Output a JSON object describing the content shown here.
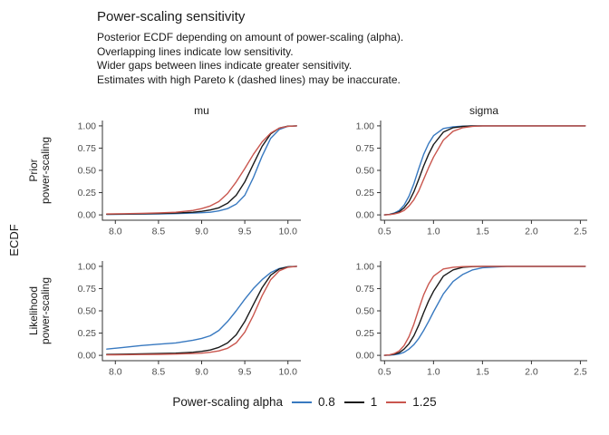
{
  "title": "Power-scaling sensitivity",
  "subtitle": "Posterior ECDF depending on amount of power-scaling (alpha).\nOverlapping lines indicate low sensitivity.\nWider gaps between lines indicate greater sensitivity.\nEstimates with high Pareto k (dashed lines) may be inaccurate.",
  "ylab": "ECDF",
  "facets": {
    "cols": [
      "mu",
      "sigma"
    ],
    "rows": [
      "Prior\npower-scaling",
      "Likelihood\npower-scaling"
    ]
  },
  "legend": {
    "title": "Power-scaling alpha",
    "items": [
      {
        "label": "0.8",
        "color": "#3879C0"
      },
      {
        "label": "1",
        "color": "#1A1A1A"
      },
      {
        "label": "1.25",
        "color": "#C9564E"
      }
    ]
  },
  "chart_data": {
    "type": "line",
    "description": "Posterior ECDF curves of parameters mu and sigma under prior and likelihood power-scaling with alpha = 0.8, 1, 1.25",
    "ylabel": "ECDF",
    "legend_position": "bottom",
    "grid": false,
    "panels": [
      {
        "id": "prior-mu",
        "row": "Prior power-scaling",
        "col": "mu",
        "xlim": [
          7.85,
          10.15
        ],
        "ylim": [
          -0.06,
          1.06
        ],
        "xtick_values": [
          8.0,
          8.5,
          9.0,
          9.5,
          10.0
        ],
        "xtick_labels": [
          "8.0",
          "8.5",
          "9.0",
          "9.5",
          "10.0"
        ],
        "ytick_values": [
          0,
          0.25,
          0.5,
          0.75,
          1.0
        ],
        "ytick_labels": [
          "0.00",
          "0.25",
          "0.50",
          "0.75",
          "1.00"
        ],
        "series": [
          {
            "name": "0.8",
            "color": "#3879C0",
            "x": [
              7.9,
              8.1,
              8.3,
              8.5,
              8.7,
              8.9,
              9.0,
              9.1,
              9.2,
              9.3,
              9.4,
              9.5,
              9.6,
              9.7,
              9.8,
              9.9,
              10.0,
              10.1
            ],
            "y": [
              0.005,
              0.007,
              0.009,
              0.011,
              0.014,
              0.02,
              0.025,
              0.03,
              0.045,
              0.07,
              0.12,
              0.22,
              0.42,
              0.66,
              0.86,
              0.96,
              0.995,
              1.0
            ]
          },
          {
            "name": "1",
            "color": "#1A1A1A",
            "x": [
              7.9,
              8.1,
              8.3,
              8.5,
              8.7,
              8.9,
              9.0,
              9.1,
              9.2,
              9.3,
              9.4,
              9.5,
              9.6,
              9.7,
              9.8,
              9.9,
              10.0,
              10.1
            ],
            "y": [
              0.007,
              0.009,
              0.012,
              0.015,
              0.02,
              0.03,
              0.04,
              0.055,
              0.08,
              0.13,
              0.22,
              0.37,
              0.57,
              0.77,
              0.91,
              0.975,
              0.997,
              1.0
            ]
          },
          {
            "name": "1.25",
            "color": "#C9564E",
            "x": [
              7.9,
              8.1,
              8.3,
              8.5,
              8.7,
              8.9,
              9.0,
              9.1,
              9.2,
              9.3,
              9.4,
              9.5,
              9.6,
              9.7,
              9.8,
              9.9,
              10.0,
              10.1
            ],
            "y": [
              0.01,
              0.013,
              0.017,
              0.022,
              0.03,
              0.05,
              0.07,
              0.1,
              0.15,
              0.24,
              0.37,
              0.52,
              0.68,
              0.82,
              0.92,
              0.975,
              0.995,
              1.0
            ]
          }
        ]
      },
      {
        "id": "prior-sigma",
        "row": "Prior power-scaling",
        "col": "sigma",
        "xlim": [
          0.46,
          2.57
        ],
        "ylim": [
          -0.06,
          1.06
        ],
        "xtick_values": [
          0.5,
          1.0,
          1.5,
          2.0,
          2.5
        ],
        "xtick_labels": [
          "0.5",
          "1.0",
          "1.5",
          "2.0",
          "2.5"
        ],
        "ytick_values": [
          0,
          0.25,
          0.5,
          0.75,
          1.0
        ],
        "ytick_labels": [
          "0.00",
          "0.25",
          "0.50",
          "0.75",
          "1.00"
        ],
        "series": [
          {
            "name": "0.8",
            "color": "#3879C0",
            "x": [
              0.5,
              0.55,
              0.6,
              0.65,
              0.7,
              0.75,
              0.8,
              0.85,
              0.9,
              0.95,
              1.0,
              1.1,
              1.2,
              1.3,
              1.4,
              1.5,
              1.75,
              2.55
            ],
            "y": [
              0.0,
              0.005,
              0.02,
              0.05,
              0.11,
              0.21,
              0.35,
              0.52,
              0.68,
              0.8,
              0.89,
              0.97,
              0.99,
              0.997,
              1.0,
              1.0,
              1.0,
              1.0
            ]
          },
          {
            "name": "1",
            "color": "#1A1A1A",
            "x": [
              0.5,
              0.55,
              0.6,
              0.65,
              0.7,
              0.75,
              0.8,
              0.85,
              0.9,
              0.95,
              1.0,
              1.1,
              1.2,
              1.3,
              1.4,
              1.5,
              1.75,
              2.55
            ],
            "y": [
              0.0,
              0.004,
              0.015,
              0.035,
              0.08,
              0.15,
              0.26,
              0.4,
              0.55,
              0.68,
              0.79,
              0.93,
              0.98,
              0.994,
              0.999,
              1.0,
              1.0,
              1.0
            ]
          },
          {
            "name": "1.25",
            "color": "#C9564E",
            "x": [
              0.5,
              0.55,
              0.6,
              0.65,
              0.7,
              0.75,
              0.8,
              0.85,
              0.9,
              0.95,
              1.0,
              1.1,
              1.2,
              1.3,
              1.4,
              1.5,
              1.75,
              2.55
            ],
            "y": [
              0.0,
              0.003,
              0.01,
              0.025,
              0.05,
              0.1,
              0.17,
              0.27,
              0.4,
              0.53,
              0.65,
              0.84,
              0.94,
              0.98,
              0.995,
              1.0,
              1.0,
              1.0
            ]
          }
        ]
      },
      {
        "id": "likelihood-mu",
        "row": "Likelihood power-scaling",
        "col": "mu",
        "xlim": [
          7.85,
          10.15
        ],
        "ylim": [
          -0.06,
          1.06
        ],
        "xtick_values": [
          8.0,
          8.5,
          9.0,
          9.5,
          10.0
        ],
        "xtick_labels": [
          "8.0",
          "8.5",
          "9.0",
          "9.5",
          "10.0"
        ],
        "ytick_values": [
          0,
          0.25,
          0.5,
          0.75,
          1.0
        ],
        "ytick_labels": [
          "0.00",
          "0.25",
          "0.50",
          "0.75",
          "1.00"
        ],
        "series": [
          {
            "name": "0.8",
            "color": "#3879C0",
            "x": [
              7.9,
              8.1,
              8.3,
              8.5,
              8.7,
              8.9,
              9.0,
              9.1,
              9.2,
              9.3,
              9.4,
              9.5,
              9.6,
              9.7,
              9.8,
              9.9,
              10.0,
              10.1
            ],
            "y": [
              0.07,
              0.09,
              0.11,
              0.125,
              0.14,
              0.17,
              0.19,
              0.22,
              0.28,
              0.38,
              0.5,
              0.63,
              0.75,
              0.85,
              0.93,
              0.975,
              0.995,
              1.0
            ]
          },
          {
            "name": "1",
            "color": "#1A1A1A",
            "x": [
              7.9,
              8.1,
              8.3,
              8.5,
              8.7,
              8.9,
              9.0,
              9.1,
              9.2,
              9.3,
              9.4,
              9.5,
              9.6,
              9.7,
              9.8,
              9.9,
              10.0,
              10.1
            ],
            "y": [
              0.01,
              0.013,
              0.016,
              0.02,
              0.025,
              0.035,
              0.045,
              0.06,
              0.09,
              0.14,
              0.23,
              0.38,
              0.57,
              0.76,
              0.9,
              0.97,
              0.995,
              1.0
            ]
          },
          {
            "name": "1.25",
            "color": "#C9564E",
            "x": [
              7.9,
              8.1,
              8.3,
              8.5,
              8.7,
              8.9,
              9.0,
              9.1,
              9.2,
              9.3,
              9.4,
              9.5,
              9.6,
              9.7,
              9.8,
              9.9,
              10.0,
              10.1
            ],
            "y": [
              0.005,
              0.007,
              0.009,
              0.011,
              0.014,
              0.02,
              0.025,
              0.035,
              0.05,
              0.08,
              0.14,
              0.26,
              0.45,
              0.67,
              0.85,
              0.95,
              0.99,
              1.0
            ]
          }
        ]
      },
      {
        "id": "likelihood-sigma",
        "row": "Likelihood power-scaling",
        "col": "sigma",
        "xlim": [
          0.46,
          2.57
        ],
        "ylim": [
          -0.06,
          1.06
        ],
        "xtick_values": [
          0.5,
          1.0,
          1.5,
          2.0,
          2.5
        ],
        "xtick_labels": [
          "0.5",
          "1.0",
          "1.5",
          "2.0",
          "2.5"
        ],
        "ytick_values": [
          0,
          0.25,
          0.5,
          0.75,
          1.0
        ],
        "ytick_labels": [
          "0.00",
          "0.25",
          "0.50",
          "0.75",
          "1.00"
        ],
        "series": [
          {
            "name": "0.8",
            "color": "#3879C0",
            "x": [
              0.5,
              0.55,
              0.6,
              0.65,
              0.7,
              0.75,
              0.8,
              0.85,
              0.9,
              0.95,
              1.0,
              1.1,
              1.2,
              1.3,
              1.4,
              1.5,
              1.75,
              2.55
            ],
            "y": [
              0.0,
              0.002,
              0.007,
              0.015,
              0.035,
              0.07,
              0.12,
              0.19,
              0.28,
              0.38,
              0.49,
              0.69,
              0.83,
              0.91,
              0.96,
              0.985,
              1.0,
              1.0
            ]
          },
          {
            "name": "1",
            "color": "#1A1A1A",
            "x": [
              0.5,
              0.55,
              0.6,
              0.65,
              0.7,
              0.75,
              0.8,
              0.85,
              0.9,
              0.95,
              1.0,
              1.1,
              1.2,
              1.3,
              1.4,
              1.5,
              1.75,
              2.55
            ],
            "y": [
              0.0,
              0.004,
              0.013,
              0.03,
              0.07,
              0.13,
              0.22,
              0.34,
              0.48,
              0.61,
              0.72,
              0.89,
              0.96,
              0.99,
              0.997,
              1.0,
              1.0,
              1.0
            ]
          },
          {
            "name": "1.25",
            "color": "#C9564E",
            "x": [
              0.5,
              0.55,
              0.6,
              0.65,
              0.7,
              0.75,
              0.8,
              0.85,
              0.9,
              0.95,
              1.0,
              1.1,
              1.2,
              1.3,
              1.4,
              1.5,
              1.75,
              2.55
            ],
            "y": [
              0.0,
              0.005,
              0.02,
              0.05,
              0.11,
              0.21,
              0.35,
              0.52,
              0.68,
              0.8,
              0.89,
              0.97,
              0.99,
              0.997,
              1.0,
              1.0,
              1.0,
              1.0
            ]
          }
        ]
      }
    ]
  }
}
